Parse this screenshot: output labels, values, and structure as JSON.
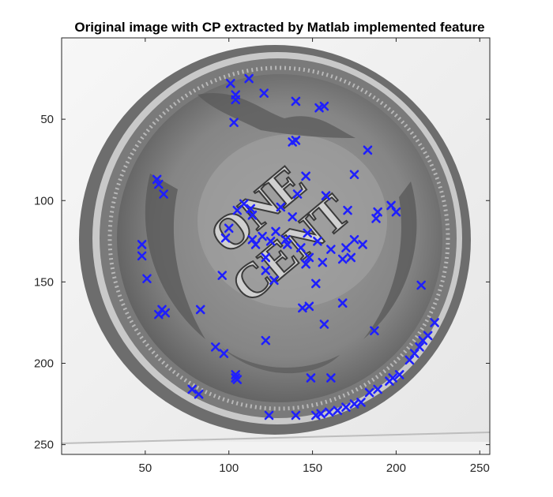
{
  "chart_data": {
    "type": "scatter",
    "title": "Original image with CP extracted by Matlab implemented feature",
    "xlabel": "",
    "ylabel": "",
    "xlim": [
      0,
      256
    ],
    "ylim": [
      0,
      256
    ],
    "y_reversed": true,
    "x_ticks": [
      50,
      100,
      150,
      200,
      250
    ],
    "y_ticks": [
      50,
      100,
      150,
      200,
      250
    ],
    "background": "grayscale photograph of a coin (ONE CENT)",
    "marker": {
      "shape": "x",
      "color": "#1f1fff"
    },
    "series": [
      {
        "name": "control points",
        "points": [
          [
            101,
            28
          ],
          [
            112,
            25
          ],
          [
            104,
            35
          ],
          [
            104,
            38
          ],
          [
            121,
            34
          ],
          [
            140,
            39
          ],
          [
            154,
            43
          ],
          [
            157,
            42
          ],
          [
            103,
            52
          ],
          [
            138,
            64
          ],
          [
            140,
            63
          ],
          [
            146,
            85
          ],
          [
            183,
            69
          ],
          [
            175,
            84
          ],
          [
            158,
            97
          ],
          [
            141,
            96
          ],
          [
            171,
            106
          ],
          [
            197,
            103
          ],
          [
            200,
            107
          ],
          [
            189,
            107
          ],
          [
            188,
            111
          ],
          [
            57,
            87
          ],
          [
            58,
            90
          ],
          [
            61,
            96
          ],
          [
            109,
            102
          ],
          [
            113,
            105
          ],
          [
            105,
            106
          ],
          [
            114,
            109
          ],
          [
            131,
            104
          ],
          [
            138,
            110
          ],
          [
            100,
            117
          ],
          [
            98,
            123
          ],
          [
            114,
            124
          ],
          [
            116,
            127
          ],
          [
            120,
            122
          ],
          [
            128,
            119
          ],
          [
            134,
            124
          ],
          [
            135,
            127
          ],
          [
            125,
            125
          ],
          [
            147,
            120
          ],
          [
            153,
            125
          ],
          [
            161,
            130
          ],
          [
            170,
            129
          ],
          [
            168,
            136
          ],
          [
            173,
            135
          ],
          [
            175,
            124
          ],
          [
            180,
            127
          ],
          [
            148,
            135
          ],
          [
            146,
            139
          ],
          [
            143,
            129
          ],
          [
            156,
            138
          ],
          [
            122,
            135
          ],
          [
            122,
            143
          ],
          [
            127,
            149
          ],
          [
            152,
            151
          ],
          [
            148,
            165
          ],
          [
            144,
            166
          ],
          [
            157,
            176
          ],
          [
            168,
            163
          ],
          [
            187,
            180
          ],
          [
            48,
            127
          ],
          [
            48,
            134
          ],
          [
            51,
            148
          ],
          [
            60,
            167
          ],
          [
            58,
            170
          ],
          [
            62,
            169
          ],
          [
            83,
            167
          ],
          [
            96,
            146
          ],
          [
            92,
            190
          ],
          [
            97,
            194
          ],
          [
            104,
            207
          ],
          [
            104,
            209
          ],
          [
            105,
            210
          ],
          [
            122,
            186
          ],
          [
            78,
            216
          ],
          [
            82,
            219
          ],
          [
            124,
            232
          ],
          [
            140,
            232
          ],
          [
            149,
            209
          ],
          [
            161,
            209
          ],
          [
            152,
            232
          ],
          [
            155,
            231
          ],
          [
            160,
            230
          ],
          [
            165,
            229
          ],
          [
            170,
            227
          ],
          [
            175,
            225
          ],
          [
            179,
            224
          ],
          [
            184,
            218
          ],
          [
            189,
            216
          ],
          [
            196,
            211
          ],
          [
            198,
            209
          ],
          [
            202,
            207
          ],
          [
            208,
            198
          ],
          [
            211,
            194
          ],
          [
            214,
            190
          ],
          [
            216,
            186
          ],
          [
            219,
            183
          ],
          [
            223,
            175
          ],
          [
            215,
            152
          ]
        ]
      }
    ]
  }
}
